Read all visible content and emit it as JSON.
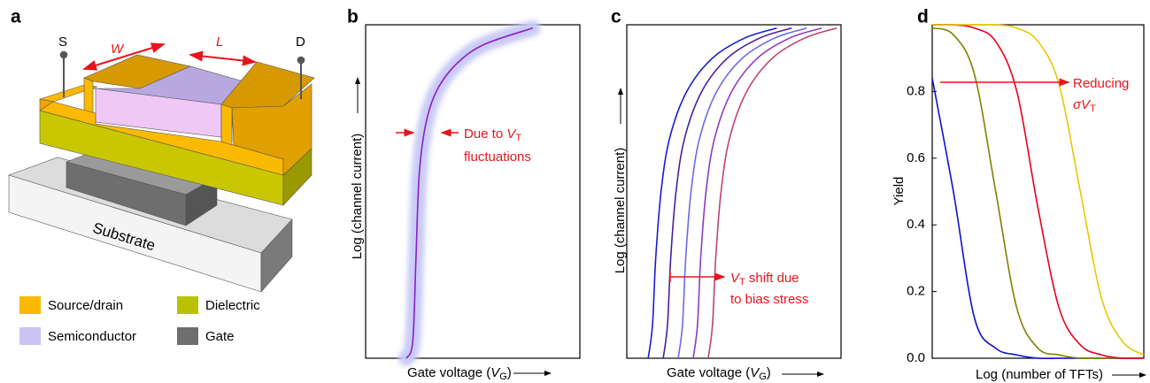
{
  "panel_labels": [
    "a",
    "b",
    "c",
    "d"
  ],
  "device": {
    "source": "S",
    "drain": "D",
    "width": "W",
    "length": "L",
    "substrate": "Substrate",
    "legend": [
      {
        "name": "Source/drain",
        "color": "#fbb900"
      },
      {
        "name": "Dielectric",
        "color": "#b9c200"
      },
      {
        "name": "Semiconductor",
        "color": "#cac4f2"
      },
      {
        "name": "Gate",
        "color": "#6e6e6e"
      }
    ]
  },
  "chart_data": [
    {
      "type": "line",
      "y_label": "Log (channel current)",
      "x_label": [
        "Gate voltage (",
        "V",
        "G",
        ")"
      ],
      "xlim": [
        0,
        1
      ],
      "ylim": [
        0,
        1
      ],
      "x": [
        0.19,
        0.22,
        0.235,
        0.25,
        0.28,
        0.33,
        0.42,
        0.55,
        0.78
      ],
      "series": [
        {
          "color": "#8b1fc9",
          "halo_color": "#c9cbf6",
          "values": [
            0,
            0.05,
            0.3,
            0.55,
            0.7,
            0.8,
            0.88,
            0.94,
            0.99
          ]
        }
      ],
      "annotation": [
        [
          "Due to ",
          "V",
          "T"
        ],
        [
          "fluctuations"
        ]
      ],
      "annotation_color": "#e8141c"
    },
    {
      "type": "line",
      "y_label": "Log (channel current)",
      "x_label": [
        "Gate voltage (",
        "V",
        "G",
        ")"
      ],
      "xlim": [
        0,
        1
      ],
      "ylim": [
        0,
        1
      ],
      "series": [
        {
          "color": "#1a1ad6",
          "x": [
            0.1,
            0.12,
            0.135,
            0.16,
            0.2,
            0.28,
            0.4,
            0.55,
            0.7
          ],
          "values": [
            0,
            0.1,
            0.3,
            0.5,
            0.66,
            0.8,
            0.9,
            0.96,
            0.99
          ]
        },
        {
          "color": "#4a1f9c",
          "x": [
            0.17,
            0.19,
            0.205,
            0.23,
            0.27,
            0.35,
            0.47,
            0.62,
            0.77
          ],
          "values": [
            0,
            0.1,
            0.3,
            0.5,
            0.66,
            0.8,
            0.9,
            0.96,
            0.99
          ]
        },
        {
          "color": "#6a6ae8",
          "x": [
            0.24,
            0.26,
            0.275,
            0.3,
            0.34,
            0.42,
            0.54,
            0.69,
            0.84
          ],
          "values": [
            0,
            0.1,
            0.3,
            0.5,
            0.66,
            0.8,
            0.9,
            0.96,
            0.99
          ]
        },
        {
          "color": "#8c3cc0",
          "x": [
            0.31,
            0.33,
            0.345,
            0.37,
            0.41,
            0.49,
            0.61,
            0.76,
            0.91
          ],
          "values": [
            0,
            0.1,
            0.3,
            0.5,
            0.66,
            0.8,
            0.9,
            0.96,
            0.99
          ]
        },
        {
          "color": "#c0407a",
          "x": [
            0.38,
            0.4,
            0.415,
            0.44,
            0.48,
            0.56,
            0.68,
            0.83,
            0.98
          ],
          "values": [
            0,
            0.1,
            0.3,
            0.5,
            0.66,
            0.8,
            0.9,
            0.96,
            0.99
          ]
        }
      ],
      "annotation": [
        [
          "V",
          "T",
          " shift due"
        ],
        [
          "to bias stress"
        ]
      ],
      "annotation_color": "#e8141c"
    },
    {
      "type": "line",
      "y_label": "Yield",
      "x_label": "Log (number of TFTs)",
      "xlim": [
        0,
        1
      ],
      "ylim": [
        0,
        1
      ],
      "yticks": [
        {
          "value": 0,
          "label": "0.0"
        },
        0.2,
        0.4,
        0.6,
        0.8
      ],
      "x": [
        0,
        0.1,
        0.2,
        0.3,
        0.4,
        0.5,
        0.6,
        0.7,
        0.8,
        0.9,
        1
      ],
      "series": [
        {
          "color": "#1010d0",
          "values": [
            0.84,
            0.5,
            0.12,
            0.03,
            0.01,
            0,
            0,
            0,
            0,
            0,
            0
          ]
        },
        {
          "color": "#808000",
          "values": [
            0.99,
            0.97,
            0.85,
            0.5,
            0.15,
            0.03,
            0.01,
            0,
            0,
            0,
            0
          ]
        },
        {
          "color": "#e8001c",
          "values": [
            1,
            1,
            0.99,
            0.95,
            0.8,
            0.45,
            0.15,
            0.04,
            0.01,
            0,
            0
          ]
        },
        {
          "color": "#e8c800",
          "values": [
            1,
            1,
            1,
            1,
            0.99,
            0.95,
            0.82,
            0.5,
            0.18,
            0.05,
            0.01
          ]
        }
      ],
      "annotation": [
        [
          "Reducing"
        ],
        [
          "σ",
          "V",
          "T"
        ]
      ],
      "annotation_color": "#e8141c"
    }
  ]
}
